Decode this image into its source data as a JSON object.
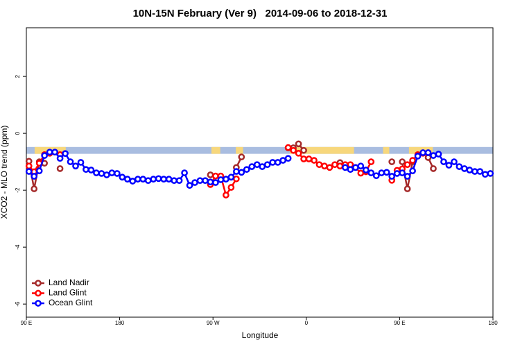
{
  "chart_data": {
    "type": "line",
    "title": "10N-15N February (Ver 9)   2014-09-06 to 2018-12-31",
    "xlabel": "Longitude",
    "ylabel": "XCO2 - MLO trend (ppm)",
    "xlim": [
      90,
      540
    ],
    "ylim": [
      -6.46,
      3.71
    ],
    "xticks": [
      {
        "value": 90,
        "label": "90 E"
      },
      180,
      {
        "value": 270,
        "label": "90 W"
      },
      {
        "value": 360,
        "label": "0"
      },
      {
        "value": 450,
        "label": "90 E"
      },
      {
        "value": 540,
        "label": "180"
      }
    ],
    "yticks": [
      -6,
      -4,
      -2,
      0,
      2
    ],
    "band": {
      "ymin": -0.72,
      "ymax": -0.48,
      "color": "#a9bde0"
    },
    "land": {
      "color": "#f7d77c",
      "ranges": [
        [
          98,
          128
        ],
        [
          268.5,
          277
        ],
        [
          292,
          299
        ],
        [
          344,
          406
        ],
        [
          434,
          440
        ],
        [
          459,
          482
        ]
      ]
    },
    "legend": "bottom-left",
    "x": [
      92.5,
      97.5,
      102.5,
      107.5,
      112.5,
      117.5,
      122.5,
      127.5,
      132.5,
      137.5,
      142.5,
      147.5,
      152.5,
      157.5,
      162.5,
      167.5,
      172.5,
      177.5,
      182.5,
      187.5,
      192.5,
      197.5,
      202.5,
      207.5,
      212.5,
      217.5,
      222.5,
      227.5,
      232.5,
      237.5,
      242.5,
      247.5,
      252.5,
      257.5,
      262.5,
      267.5,
      272.5,
      277.5,
      282.5,
      287.5,
      292.5,
      297.5,
      302.5,
      307.5,
      312.5,
      317.5,
      322.5,
      327.5,
      332.5,
      337.5,
      342.5,
      347.5,
      352.5,
      357.5,
      362.5,
      367.5,
      372.5,
      377.5,
      382.5,
      387.5,
      392.5,
      397.5,
      402.5,
      407.5,
      412.5,
      417.5,
      422.5,
      427.5,
      432.5,
      437.5,
      442.5,
      447.5,
      452.5,
      457.5,
      462.5,
      467.5,
      472.5,
      477.5,
      482.5,
      487.5,
      492.5,
      497.5,
      502.5,
      507.5,
      512.5,
      517.5,
      522.5,
      527.5,
      532.5,
      537.5
    ],
    "series": [
      {
        "name": "Land Nadir",
        "color": "#a52a2a",
        "values": [
          -0.98,
          -1.95,
          -1.0,
          -1.05,
          null,
          null,
          -1.24,
          null,
          null,
          null,
          null,
          null,
          null,
          null,
          null,
          null,
          null,
          null,
          null,
          null,
          null,
          null,
          null,
          null,
          null,
          null,
          null,
          null,
          null,
          null,
          null,
          null,
          null,
          null,
          null,
          -1.46,
          null,
          null,
          null,
          null,
          -1.2,
          -0.83,
          null,
          null,
          null,
          null,
          null,
          null,
          null,
          null,
          -0.51,
          -0.51,
          -0.37,
          -0.6,
          null,
          null,
          null,
          null,
          null,
          null,
          -1.03,
          null,
          null,
          null,
          null,
          null,
          null,
          null,
          null,
          null,
          -1.0,
          null,
          -1.0,
          -1.95,
          -1.0,
          null,
          null,
          -0.85,
          -1.24,
          null,
          null,
          null,
          null,
          null,
          null,
          null,
          null,
          null,
          null,
          null
        ]
      },
      {
        "name": "Land Glint",
        "color": "#ff0000",
        "values": [
          -1.15,
          -1.35,
          -1.05,
          -0.75,
          -0.7,
          null,
          -0.75,
          null,
          null,
          null,
          null,
          null,
          null,
          null,
          null,
          null,
          null,
          null,
          null,
          null,
          null,
          null,
          null,
          null,
          null,
          null,
          null,
          null,
          null,
          null,
          null,
          null,
          null,
          null,
          null,
          -1.8,
          -1.5,
          -1.5,
          -2.17,
          -1.9,
          -1.6,
          null,
          null,
          null,
          null,
          null,
          null,
          null,
          null,
          null,
          -0.5,
          -0.6,
          -0.7,
          -0.9,
          -0.9,
          -0.95,
          -1.1,
          -1.15,
          -1.2,
          -1.1,
          -1.15,
          -1.1,
          -1.1,
          -1.2,
          -1.4,
          -1.35,
          -1.0,
          null,
          null,
          null,
          -1.65,
          -1.3,
          -1.25,
          -1.1,
          -0.95,
          -0.75,
          -0.7,
          null,
          null,
          null,
          null,
          null,
          null,
          null,
          null,
          null,
          null,
          null,
          null,
          null
        ]
      },
      {
        "name": "Ocean Glint",
        "color": "#0000ff",
        "values": [
          -1.34,
          -1.51,
          -1.32,
          -0.78,
          -0.66,
          -0.66,
          -0.88,
          -0.71,
          -1.0,
          -1.15,
          -1.02,
          -1.27,
          -1.29,
          -1.39,
          -1.41,
          -1.46,
          -1.39,
          -1.41,
          -1.54,
          -1.61,
          -1.68,
          -1.61,
          -1.61,
          -1.66,
          -1.61,
          -1.59,
          -1.61,
          -1.61,
          -1.66,
          -1.66,
          -1.39,
          -1.83,
          -1.73,
          -1.66,
          -1.66,
          -1.71,
          -1.73,
          -1.63,
          -1.61,
          -1.54,
          -1.34,
          -1.37,
          -1.27,
          -1.17,
          -1.1,
          -1.17,
          -1.1,
          -1.02,
          -1.02,
          -0.95,
          -0.88,
          null,
          null,
          null,
          null,
          null,
          null,
          null,
          null,
          null,
          null,
          -1.2,
          -1.27,
          -1.2,
          -1.15,
          -1.29,
          -1.39,
          -1.49,
          -1.39,
          -1.37,
          -1.51,
          -1.41,
          -1.39,
          -1.51,
          -1.32,
          -0.8,
          -0.68,
          -0.68,
          -0.78,
          -0.73,
          -1.0,
          -1.12,
          -1.0,
          -1.17,
          -1.24,
          -1.29,
          -1.34,
          -1.34,
          -1.44,
          -1.41
        ]
      }
    ]
  }
}
